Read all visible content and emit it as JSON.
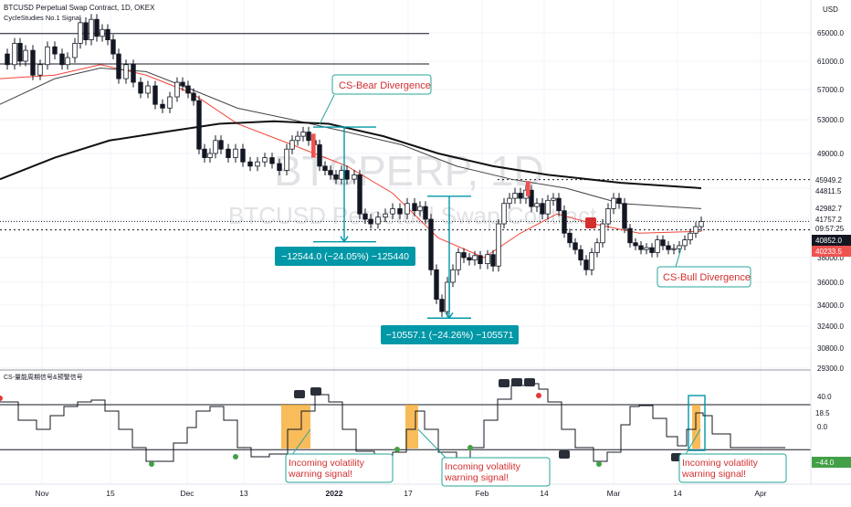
{
  "header": {
    "symbol_line": "BTCUSD Perpetual Swap Contract, 1D, OKEX",
    "indicator_line": "CycleStudies No.1 Signal"
  },
  "watermark": {
    "line1": "BTCPERP, 1D",
    "line2": "BTCUSD Perpetual Swap Contract"
  },
  "currency_label": "USD",
  "indicator_title": "CS-量能周期信号&预警信号",
  "annotations": {
    "bear_divergence": "CS-Bear Divergence",
    "bull_divergence": "CS-Bull Divergence",
    "measure1": "−12544.0 (−24.05%) −125440",
    "measure2": "−10557.1 (−24.26%) −105571",
    "warning1": [
      "Incoming volatility",
      "warning signal!"
    ],
    "warning2": [
      "Incoming volatility",
      "warning signal!"
    ],
    "warning3": [
      "Incoming volatility",
      "warning signal!"
    ]
  },
  "price_labels": {
    "p1": "45949.2",
    "p2": "44811.5",
    "p3": "42982.7",
    "p4": "41757.2",
    "p4_time": "09:57:25",
    "p5": "40852.0",
    "p6": "40233.5",
    "ind_value": "18.5",
    "ind_low": "−44.0"
  },
  "colors": {
    "bull": "#26a69a",
    "bear": "#ef5350",
    "ema": "#f44336",
    "ma_grey": "#444444",
    "ma_black": "#111111",
    "callout_border": "#26a69a",
    "callout_text_red": "#d32f2f",
    "measure_bg": "#0097a7",
    "warning_fill": "#f5a623"
  },
  "chart_data": {
    "type": "candlestick",
    "title": "BTCUSD Perpetual Swap Contract, 1D, OKEX",
    "price_axis": {
      "ticks": [
        65000,
        61000,
        57000,
        53000,
        49000,
        45000,
        42000,
        38000,
        36000,
        34000,
        32400,
        30800,
        29300
      ],
      "tick_labels": [
        "65000.0",
        "61000.0",
        "57000.0",
        "53000.0",
        "49000.0",
        "45000.0",
        "42000.0",
        "38000.0",
        "36000.0",
        "34000.0",
        "32400.0",
        "30800.0",
        "29300.0"
      ],
      "scale": "log"
    },
    "time_axis": {
      "tick_labels": [
        "Nov",
        "15",
        "Dec",
        "13",
        "2022",
        "17",
        "Feb",
        "14",
        "Mar",
        "14",
        "Apr"
      ]
    },
    "horizontal_lines": [
      64900,
      60600,
      40852,
      45949.2
    ],
    "current_price": 41757.2,
    "indicator_axis": {
      "tick_labels": [
        "40.0",
        "0.0"
      ],
      "upper_line": 40,
      "lower_line": -44
    },
    "indicator_value": 18.5
  }
}
